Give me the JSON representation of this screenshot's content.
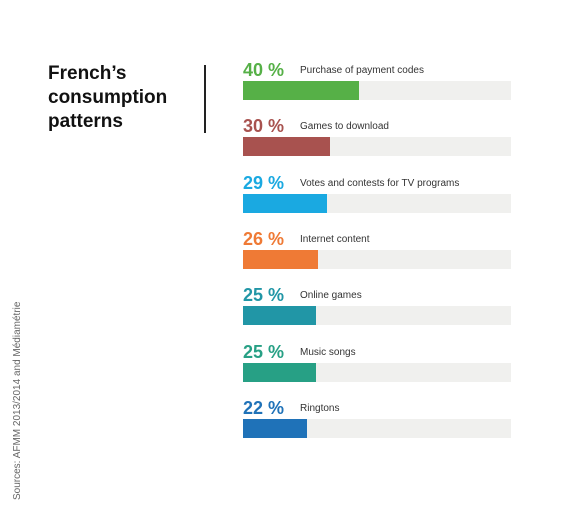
{
  "chart_data": {
    "type": "bar",
    "orientation": "horizontal",
    "title": "French’s consumption patterns",
    "source": "Sources: AFMM 2013/2014 and Médiamétrie",
    "categories": [
      "Purchase of payment codes",
      "Games to download",
      "Votes and contests for TV programs",
      "Internet content",
      "Online games",
      "Music songs",
      "Ringtons"
    ],
    "values": [
      40,
      30,
      29,
      26,
      25,
      25,
      22
    ],
    "value_labels": [
      "40 %",
      "30 %",
      "29 %",
      "26 %",
      "25 %",
      "25 %",
      "22 %"
    ],
    "colors": [
      "#56b047",
      "#a8524f",
      "#1aa9e1",
      "#ef7a35",
      "#2196a6",
      "#27a085",
      "#1f72b8"
    ]
  }
}
